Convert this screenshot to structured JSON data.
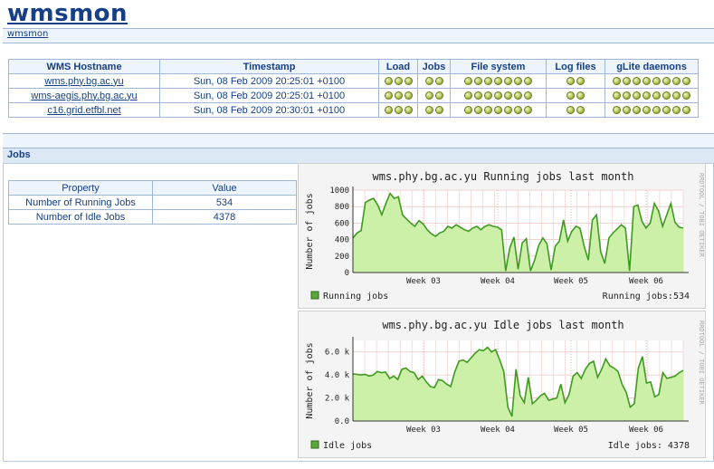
{
  "app": {
    "title": "wmsmon",
    "breadcrumb": "wmsmon"
  },
  "wms_table": {
    "headers": [
      "WMS Hostname",
      "Timestamp",
      "Load",
      "Jobs",
      "File system",
      "Log files",
      "gLite daemons"
    ],
    "rows": [
      {
        "host": "wms.phy.bg.ac.yu",
        "timestamp": "Sun, 08 Feb 2009 20:25:01 +0100",
        "load": 3,
        "jobs": 2,
        "fs": 7,
        "log": 2,
        "daemons": 8
      },
      {
        "host": "wms-aegis.phy.bg.ac.yu",
        "timestamp": "Sun, 08 Feb 2009 20:25:01 +0100",
        "load": 3,
        "jobs": 2,
        "fs": 7,
        "log": 2,
        "daemons": 8
      },
      {
        "host": "c16.grid.etfbl.net",
        "timestamp": "Sun, 08 Feb 2009 20:30:01 +0100",
        "load": 3,
        "jobs": 2,
        "fs": 7,
        "log": 2,
        "daemons": 8
      }
    ],
    "status_color": "#a9bd4a"
  },
  "jobs_section": {
    "title": "Jobs",
    "headers": [
      "Property",
      "Value"
    ],
    "rows": [
      {
        "property": "Number of Running Jobs",
        "value": "534"
      },
      {
        "property": "Number of Idle Jobs",
        "value": "4378"
      }
    ]
  },
  "chart_data": [
    {
      "type": "area",
      "title": "wms.phy.bg.ac.yu Running jobs last month",
      "ylabel": "Number of jobs",
      "ylim": [
        0,
        1000
      ],
      "y_ticks": [
        "0",
        "200",
        "400",
        "600",
        "800",
        "1000"
      ],
      "x_ticks": [
        "Week 03",
        "Week 04",
        "Week 05",
        "Week 06"
      ],
      "legend": "Running jobs",
      "current_label": "Running jobs:534",
      "side_text": "RRDTOOL / TOBI OETIKER",
      "series": [
        {
          "name": "Running jobs",
          "values": [
            420,
            480,
            510,
            850,
            880,
            900,
            820,
            700,
            840,
            960,
            900,
            920,
            700,
            650,
            600,
            560,
            630,
            590,
            520,
            470,
            440,
            480,
            500,
            560,
            540,
            580,
            550,
            520,
            500,
            540,
            560,
            520,
            560,
            580,
            560,
            550,
            520,
            20,
            300,
            430,
            40,
            360,
            410,
            20,
            150,
            330,
            420,
            350,
            30,
            320,
            380,
            640,
            380,
            500,
            560,
            540,
            320,
            150,
            640,
            700,
            250,
            110,
            420,
            480,
            530,
            580,
            540,
            20,
            800,
            820,
            620,
            540,
            600,
            840,
            750,
            560,
            700,
            840,
            610,
            550,
            540
          ]
        }
      ],
      "colors": {
        "fill": "#ccf0a8",
        "line": "#3f9a22"
      }
    },
    {
      "type": "area",
      "title": "wms.phy.bg.ac.yu Idle jobs last month",
      "ylabel": "Number of jobs",
      "ylim": [
        0,
        7000
      ],
      "y_ticks": [
        "0.0",
        "2.0 k",
        "4.0 k",
        "6.0 k"
      ],
      "x_ticks": [
        "Week 03",
        "Week 04",
        "Week 05",
        "Week 06"
      ],
      "legend": "Idle jobs",
      "current_label": "Idle jobs: 4378",
      "side_text": "RRDTOOL / TOBI OETIKER",
      "series": [
        {
          "name": "Idle jobs",
          "values": [
            4100,
            4050,
            4000,
            4050,
            3900,
            4000,
            4300,
            4200,
            4250,
            3700,
            3900,
            3600,
            4500,
            4600,
            4300,
            4200,
            3600,
            3900,
            3400,
            3000,
            2900,
            3600,
            3500,
            3200,
            3000,
            4300,
            5200,
            5300,
            5100,
            5500,
            5900,
            6200,
            6100,
            6400,
            6000,
            6200,
            5300,
            4300,
            1200,
            400,
            4500,
            2200,
            1600,
            3800,
            1500,
            1800,
            2200,
            2400,
            1800,
            1900,
            2000,
            3200,
            1600,
            2300,
            3900,
            4200,
            3700,
            4500,
            5000,
            5200,
            3800,
            4500,
            5400,
            4800,
            4600,
            4300,
            3200,
            2500,
            1200,
            1500,
            4600,
            5600,
            3300,
            3400,
            2100,
            2300,
            4200,
            3700,
            3800,
            3900,
            4200,
            4400
          ]
        }
      ],
      "colors": {
        "fill": "#ccf0a8",
        "line": "#3f9a22"
      }
    }
  ]
}
